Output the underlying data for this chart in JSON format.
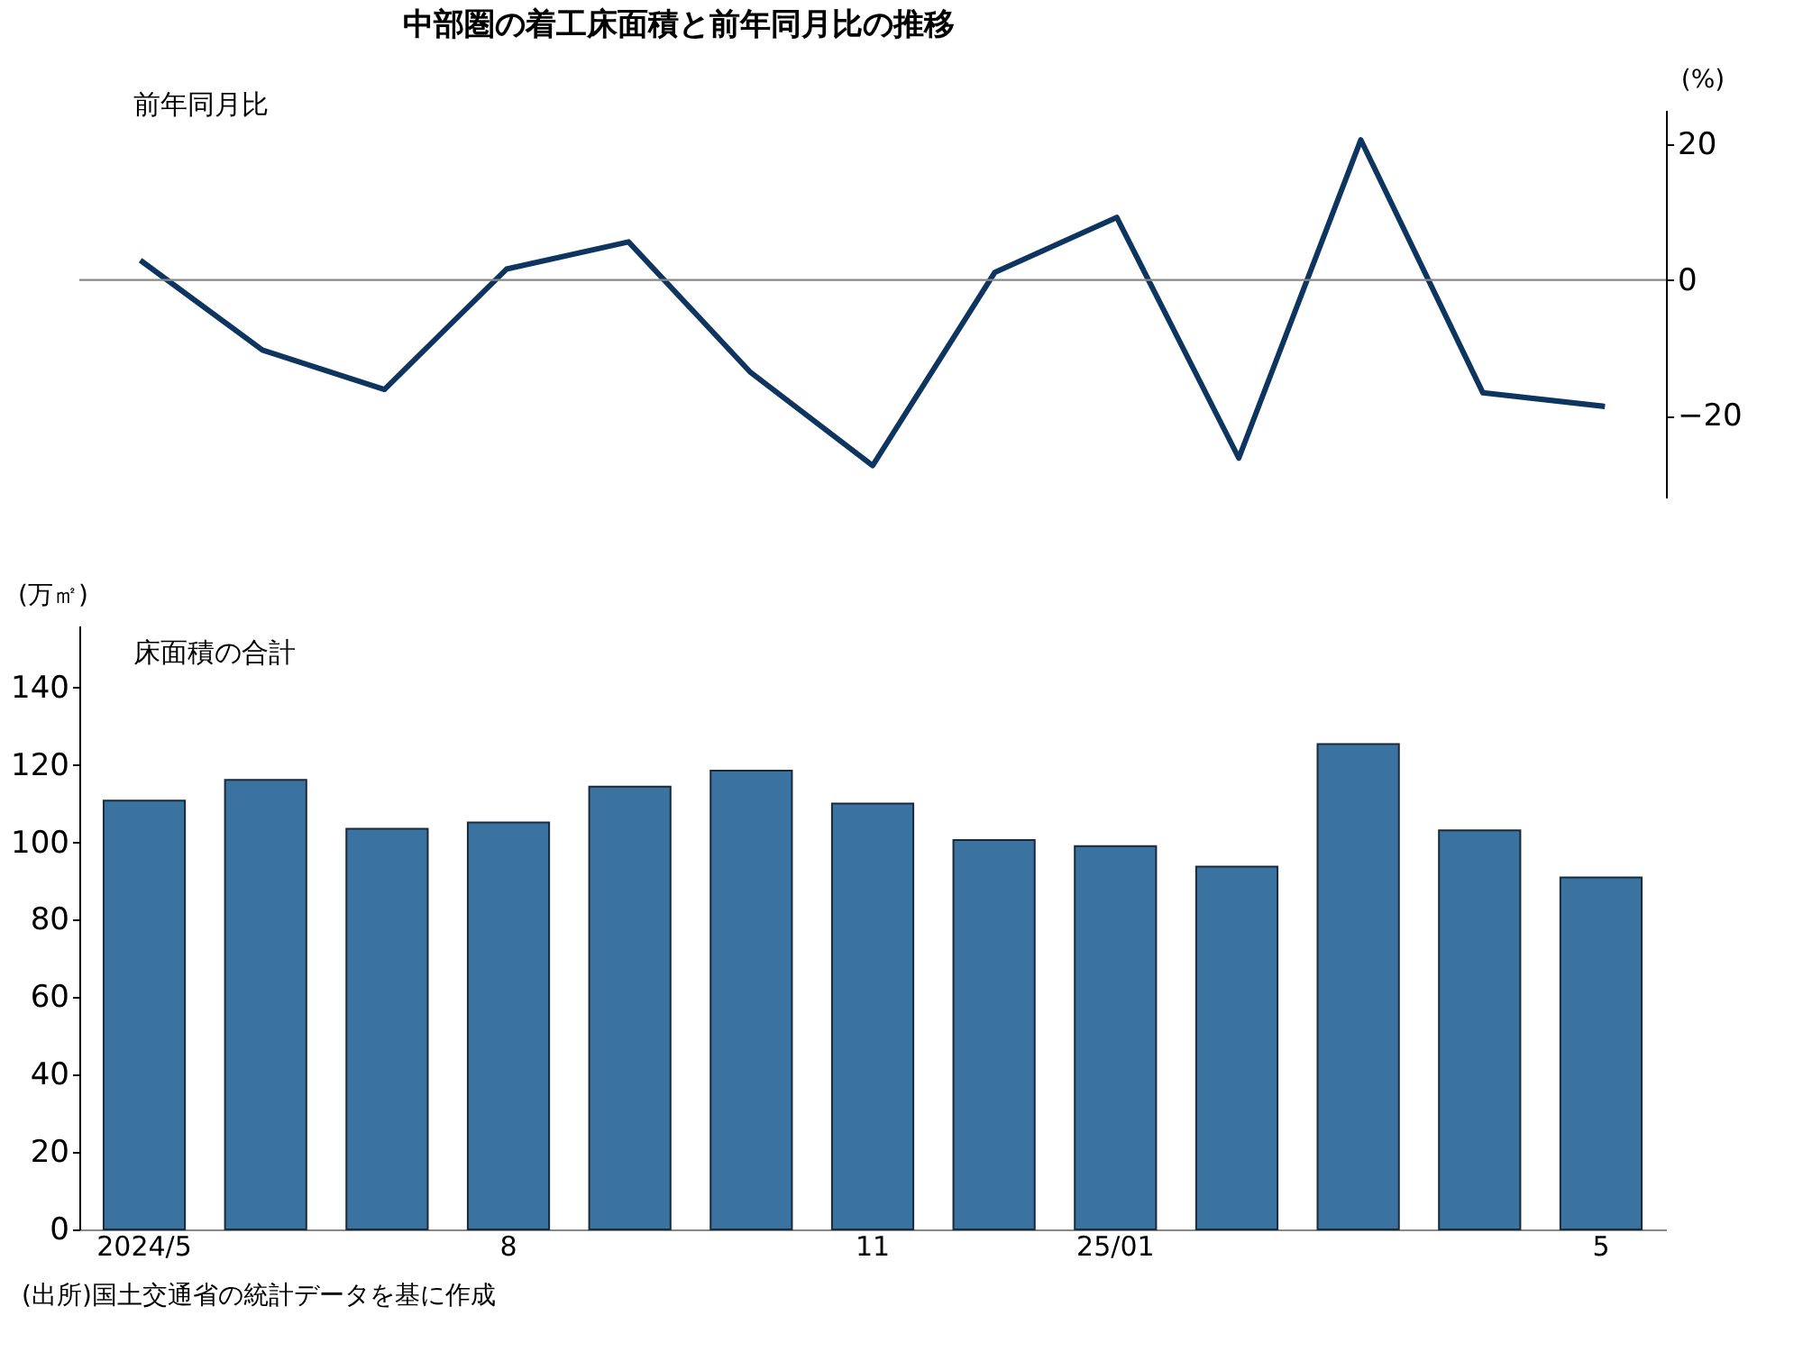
{
  "chart_data": [
    {
      "type": "line",
      "title": "中部圏の着工床面積と前年同月比の推移",
      "subtitle": "前年同月比",
      "ylabel": "(%)",
      "categories": [
        null,
        null,
        null,
        null,
        null,
        null,
        null,
        null,
        null,
        null,
        null,
        null,
        null
      ],
      "series": [
        {
          "color": "#0d3560",
          "values": [
            2.9,
            -10.3,
            -16.1,
            1.6,
            5.6,
            -13.6,
            -27.3,
            1.1,
            9.2,
            -26.2,
            20.6,
            -16.6,
            -18.6
          ]
        }
      ],
      "ylim": [
        -32,
        25
      ],
      "yticks": [
        -20,
        0,
        20
      ],
      "ref_lines": [
        {
          "axis": "y",
          "value": 0,
          "color": "#888888"
        }
      ],
      "grid": false,
      "marker": "none",
      "line_style": "solid"
    },
    {
      "type": "bar",
      "title": "床面積の合計",
      "ylabel": "(万㎡)",
      "categories": [
        "2024/5",
        null,
        null,
        "8",
        null,
        null,
        "11",
        null,
        "25/01",
        null,
        null,
        null,
        "5"
      ],
      "series": [
        {
          "color": "#3a72a0",
          "values": [
            110.8,
            116.1,
            103.5,
            105.1,
            114.4,
            118.5,
            110.0,
            100.6,
            99.0,
            93.7,
            125.4,
            103.1,
            90.9
          ]
        }
      ],
      "ylim": [
        0,
        156
      ],
      "yticks": [
        0,
        20,
        40,
        60,
        80,
        100,
        120,
        140
      ],
      "grid": false,
      "annotations": [
        "(出所)国土交通省の統計データを基に作成"
      ]
    }
  ]
}
